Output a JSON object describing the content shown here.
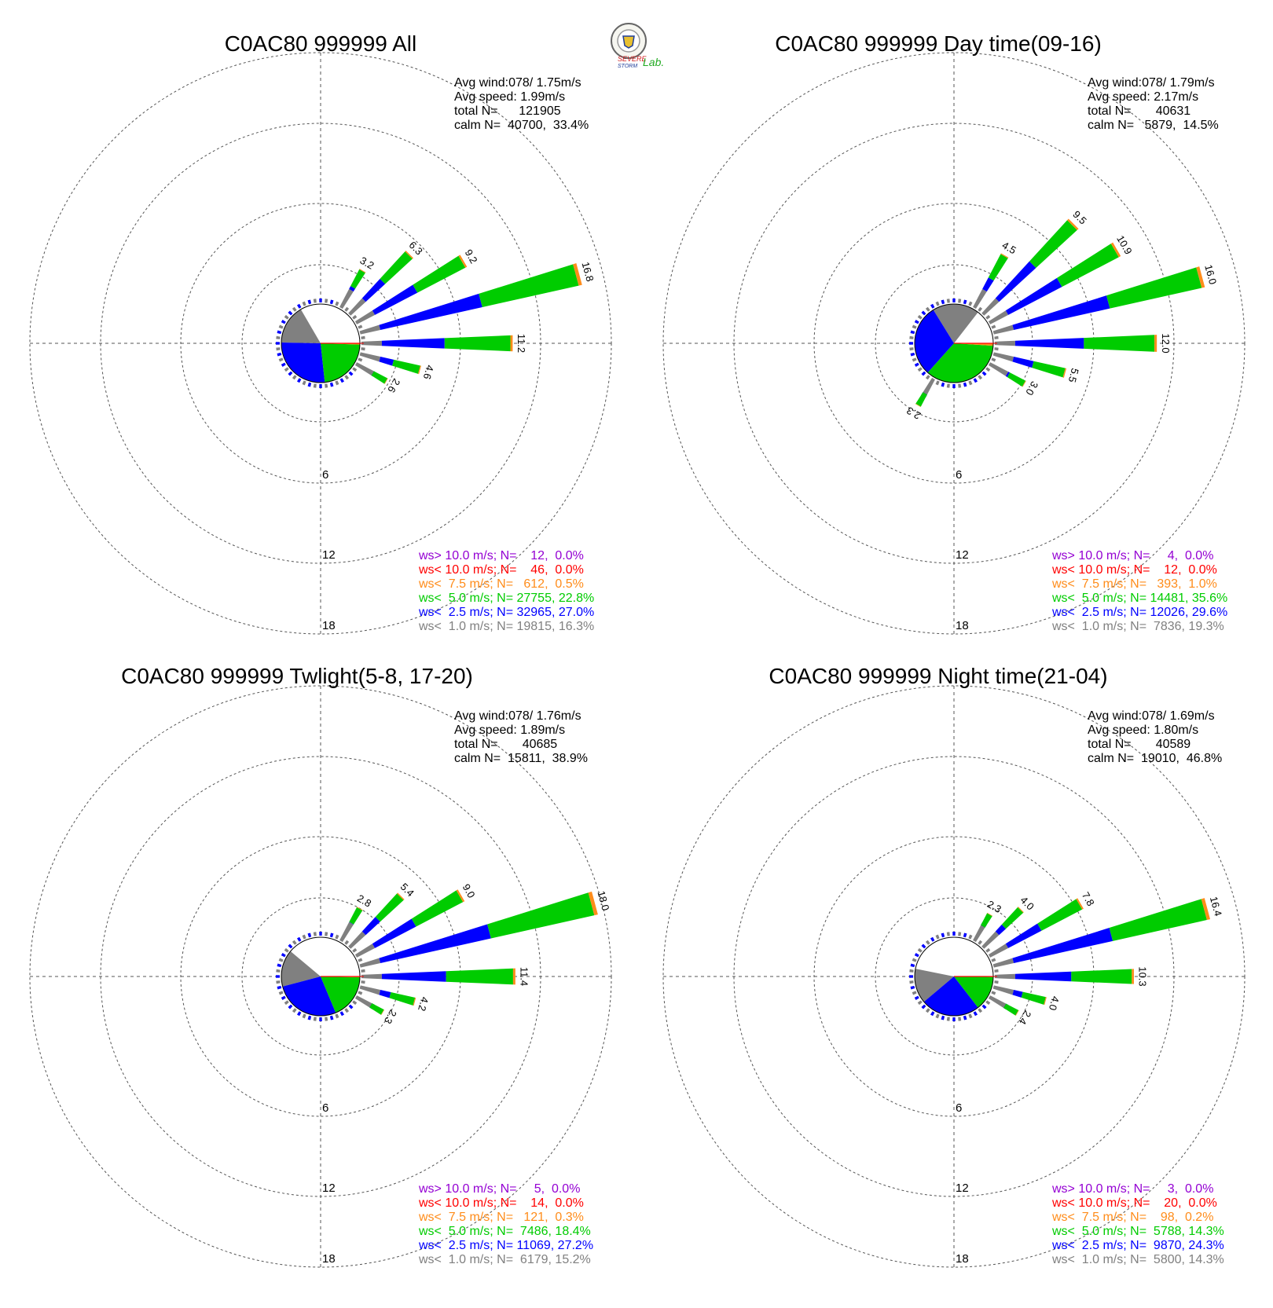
{
  "logo": {
    "line1": "SEVERE",
    "line2": "STORM",
    "line3": "Lab."
  },
  "ring_labels": [
    "6",
    "12",
    "18"
  ],
  "colors": {
    "gt10": "#9400d3",
    "lt10": "#ff0000",
    "lt7_5": "#ff8c1a",
    "lt5": "#00cc00",
    "lt2_5": "#0000ff",
    "lt1": "#808080"
  },
  "chart_data": [
    {
      "type": "windrose",
      "title": "C0AC80 999999 All",
      "info": [
        "Avg wind:078/ 1.75m/s",
        "Avg speed: 1.99m/s",
        "total N=      121905",
        "calm N=  40700,  33.4%"
      ],
      "legend": [
        {
          "text": "ws> 10.0 m/s; N=    12,  0.0%",
          "color": "#9400d3"
        },
        {
          "text": "ws< 10.0 m/s; N=    46,  0.0%",
          "color": "#ff0000"
        },
        {
          "text": "ws<  7.5 m/s; N=   612,  0.5%",
          "color": "#ff8c1a"
        },
        {
          "text": "ws<  5.0 m/s; N= 27755, 22.8%",
          "color": "#00cc00"
        },
        {
          "text": "ws<  2.5 m/s; N= 32965, 27.0%",
          "color": "#0000ff"
        },
        {
          "text": "ws<  1.0 m/s; N= 19815, 16.3%",
          "color": "#808080"
        }
      ],
      "calm_pie": [
        33.4,
        16.3,
        27.0,
        22.8,
        0.5
      ],
      "sectors": [
        {
          "dir": 30,
          "total": 3.2
        },
        {
          "dir": 45,
          "total": 6.3
        },
        {
          "dir": 60,
          "total": 9.2
        },
        {
          "dir": 75,
          "total": 16.8
        },
        {
          "dir": 90,
          "total": 11.2
        },
        {
          "dir": 105,
          "total": 4.6
        },
        {
          "dir": 120,
          "total": 2.6
        }
      ]
    },
    {
      "type": "windrose",
      "title": "C0AC80 999999 Day time(09-16)",
      "info": [
        "Avg wind:078/ 1.79m/s",
        "Avg speed: 2.17m/s",
        "total N=       40631",
        "calm N=   5879,  14.5%"
      ],
      "legend": [
        {
          "text": "ws> 10.0 m/s; N=     4,  0.0%",
          "color": "#9400d3"
        },
        {
          "text": "ws< 10.0 m/s; N=    12,  0.0%",
          "color": "#ff0000"
        },
        {
          "text": "ws<  7.5 m/s; N=   393,  1.0%",
          "color": "#ff8c1a"
        },
        {
          "text": "ws<  5.0 m/s; N= 14481, 35.6%",
          "color": "#00cc00"
        },
        {
          "text": "ws<  2.5 m/s; N= 12026, 29.6%",
          "color": "#0000ff"
        },
        {
          "text": "ws<  1.0 m/s; N=  7836, 19.3%",
          "color": "#808080"
        }
      ],
      "calm_pie": [
        14.5,
        19.3,
        29.6,
        35.6,
        1.0
      ],
      "sectors": [
        {
          "dir": 30,
          "total": 4.5
        },
        {
          "dir": 45,
          "total": 9.5
        },
        {
          "dir": 60,
          "total": 10.9
        },
        {
          "dir": 75,
          "total": 16.0
        },
        {
          "dir": 90,
          "total": 12.0
        },
        {
          "dir": 105,
          "total": 5.5
        },
        {
          "dir": 120,
          "total": 3.0
        },
        {
          "dir": 210,
          "total": 2.3
        }
      ]
    },
    {
      "type": "windrose",
      "title": "C0AC80 999999 Twlight(5-8, 17-20)",
      "info": [
        "Avg wind:078/ 1.76m/s",
        "Avg speed: 1.89m/s",
        "total N=       40685",
        "calm N=  15811,  38.9%"
      ],
      "legend": [
        {
          "text": "ws> 10.0 m/s; N=     5,  0.0%",
          "color": "#9400d3"
        },
        {
          "text": "ws< 10.0 m/s; N=    14,  0.0%",
          "color": "#ff0000"
        },
        {
          "text": "ws<  7.5 m/s; N=   121,  0.3%",
          "color": "#ff8c1a"
        },
        {
          "text": "ws<  5.0 m/s; N=  7486, 18.4%",
          "color": "#00cc00"
        },
        {
          "text": "ws<  2.5 m/s; N= 11069, 27.2%",
          "color": "#0000ff"
        },
        {
          "text": "ws<  1.0 m/s; N=  6179, 15.2%",
          "color": "#808080"
        }
      ],
      "calm_pie": [
        38.9,
        15.2,
        27.2,
        18.4,
        0.3
      ],
      "sectors": [
        {
          "dir": 30,
          "total": 2.8
        },
        {
          "dir": 45,
          "total": 5.4
        },
        {
          "dir": 60,
          "total": 9.0
        },
        {
          "dir": 75,
          "total": 18.0
        },
        {
          "dir": 90,
          "total": 11.4
        },
        {
          "dir": 105,
          "total": 4.2
        },
        {
          "dir": 120,
          "total": 2.3
        }
      ]
    },
    {
      "type": "windrose",
      "title": "C0AC80 999999 Night time(21-04)",
      "info": [
        "Avg wind:078/ 1.69m/s",
        "Avg speed: 1.80m/s",
        "total N=       40589",
        "calm N=  19010,  46.8%"
      ],
      "legend": [
        {
          "text": "ws> 10.0 m/s; N=     3,  0.0%",
          "color": "#9400d3"
        },
        {
          "text": "ws< 10.0 m/s; N=    20,  0.0%",
          "color": "#ff0000"
        },
        {
          "text": "ws<  7.5 m/s; N=    98,  0.2%",
          "color": "#ff8c1a"
        },
        {
          "text": "ws<  5.0 m/s; N=  5788, 14.3%",
          "color": "#00cc00"
        },
        {
          "text": "ws<  2.5 m/s; N=  9870, 24.3%",
          "color": "#0000ff"
        },
        {
          "text": "ws<  1.0 m/s; N=  5800, 14.3%",
          "color": "#808080"
        }
      ],
      "calm_pie": [
        46.8,
        14.3,
        24.3,
        14.3,
        0.2
      ],
      "sectors": [
        {
          "dir": 30,
          "total": 2.3
        },
        {
          "dir": 45,
          "total": 4.0
        },
        {
          "dir": 60,
          "total": 7.8
        },
        {
          "dir": 75,
          "total": 16.4
        },
        {
          "dir": 90,
          "total": 10.3
        },
        {
          "dir": 105,
          "total": 4.0
        },
        {
          "dir": 120,
          "total": 2.4
        }
      ]
    }
  ]
}
